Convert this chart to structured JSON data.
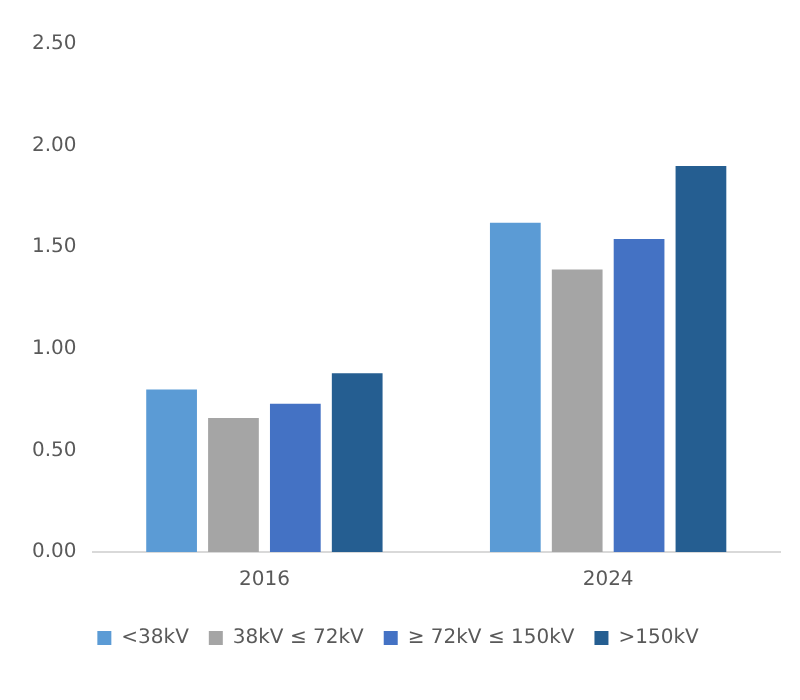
{
  "chart_data": {
    "type": "bar",
    "categories": [
      "2016",
      "2024"
    ],
    "series": [
      {
        "name": "<38kV",
        "color": "#5b9bd5",
        "values": [
          0.8,
          1.62
        ]
      },
      {
        "name": "38kV ≤ 72kV",
        "color": "#a5a5a5",
        "values": [
          0.66,
          1.39
        ]
      },
      {
        "name": "≥ 72kV ≤ 150kV",
        "color": "#4472c4",
        "values": [
          0.73,
          1.54
        ]
      },
      {
        "name": ">150kV",
        "color": "#255e91",
        "values": [
          0.88,
          1.9
        ]
      }
    ],
    "ylim": [
      0,
      2.5
    ],
    "yticks": [
      {
        "value": 0,
        "label": "0.00"
      },
      {
        "value": 0.5,
        "label": "0.50"
      },
      {
        "value": 1,
        "label": "1.00"
      },
      {
        "value": 1.5,
        "label": "1.50"
      },
      {
        "value": 2,
        "label": "2.00"
      },
      {
        "value": 2.5,
        "label": "2.50"
      }
    ],
    "grid": false,
    "legend": "bottom"
  }
}
